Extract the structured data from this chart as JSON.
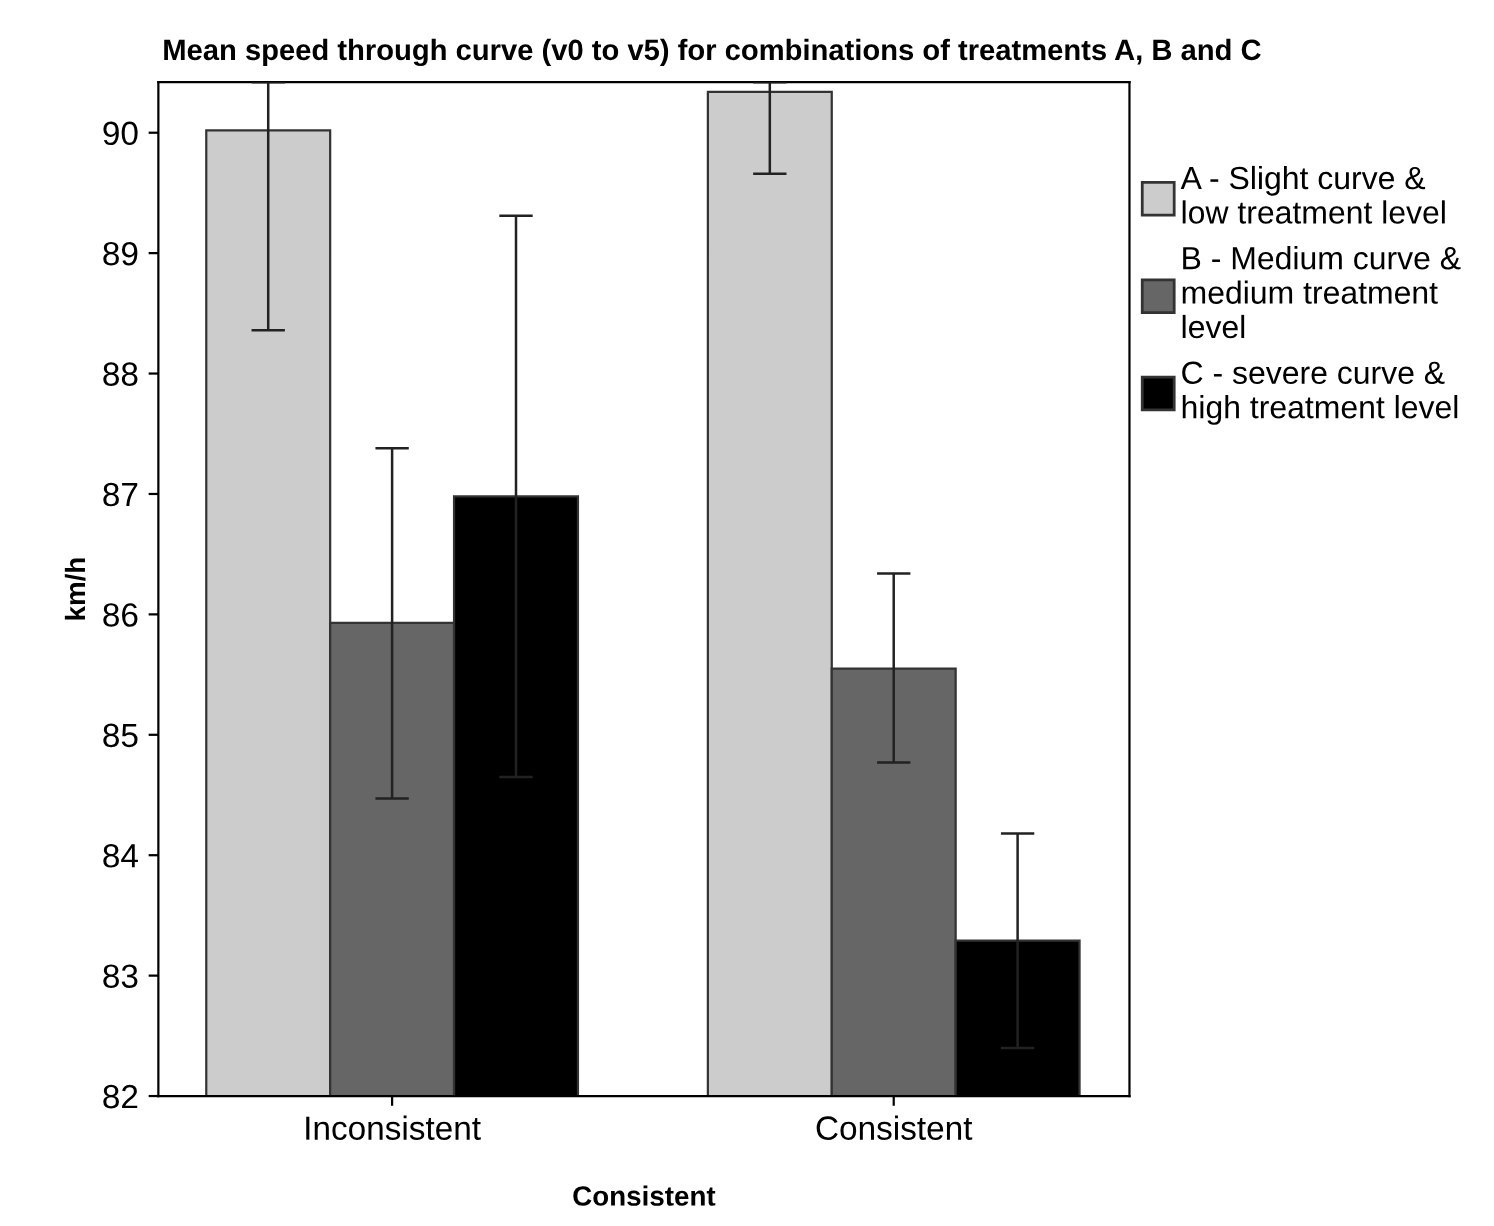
{
  "chart_data": {
    "type": "bar",
    "title": "Mean speed through curve (v0 to v5) for combinations of treatments A, B and C",
    "xlabel": "Consistent",
    "ylabel": "km/h",
    "categories": [
      "Inconsistent",
      "Consistent"
    ],
    "series": [
      {
        "name": "A - Slight curve & low treatment level",
        "color": "#cccccc",
        "values": [
          90.02,
          90.34
        ],
        "errors": [
          [
            88.36,
            90.42
          ],
          [
            89.66,
            90.42
          ]
        ]
      },
      {
        "name": "B - Medium curve & medium treatment level",
        "color": "#666666",
        "values": [
          85.93,
          85.55
        ],
        "errors": [
          [
            84.47,
            87.38
          ],
          [
            84.77,
            86.34
          ]
        ]
      },
      {
        "name": "C - severe curve & high treatment level",
        "color": "#000000",
        "values": [
          86.98,
          83.29
        ],
        "errors": [
          [
            84.65,
            89.31
          ],
          [
            82.4,
            84.18
          ]
        ]
      }
    ],
    "ylim": [
      82,
      90.42
    ],
    "yticks": [
      82,
      83,
      84,
      85,
      86,
      87,
      88,
      89,
      90
    ],
    "grid": false,
    "legend": "right"
  }
}
